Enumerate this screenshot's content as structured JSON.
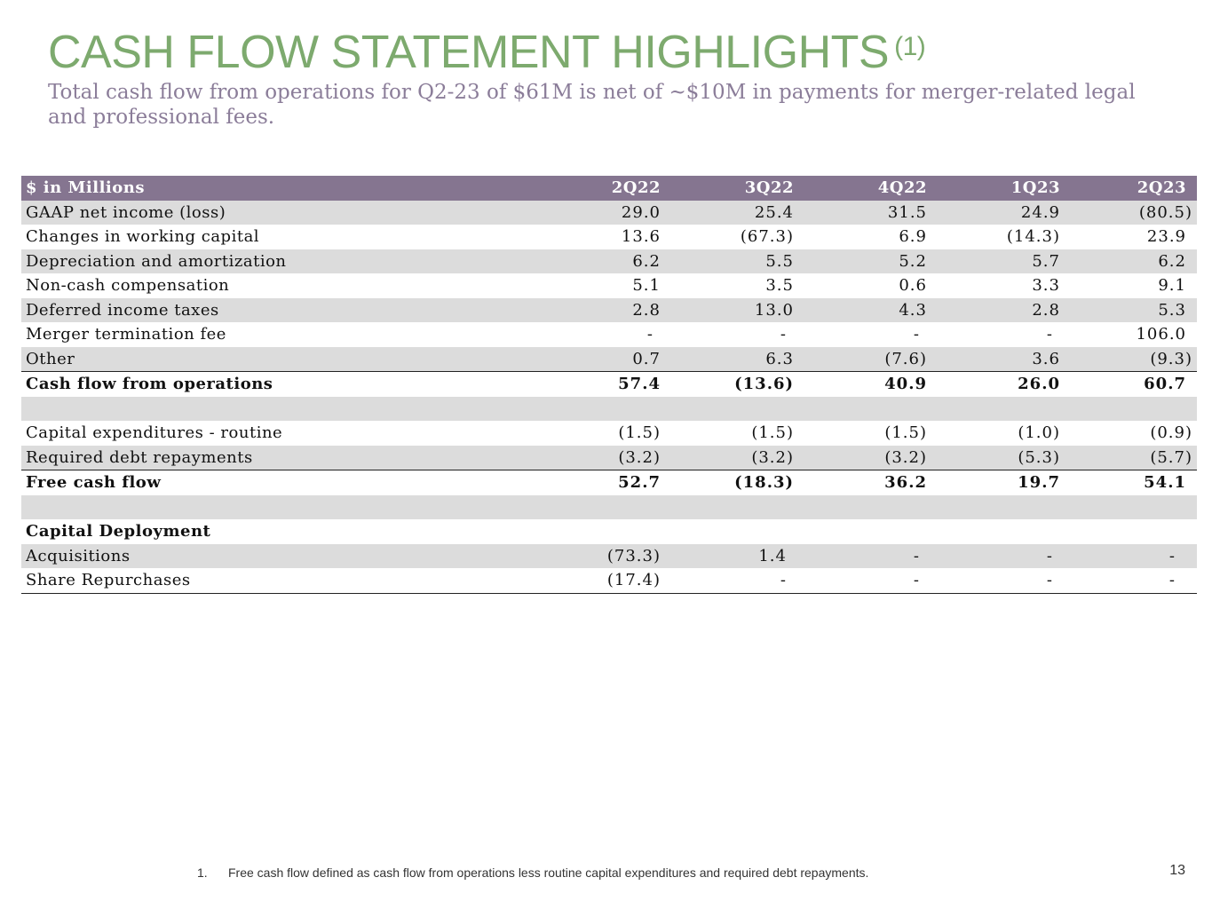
{
  "title": "CASH FLOW STATEMENT HIGHLIGHTS",
  "title_sup": "(1)",
  "subtitle": "Total cash flow from operations for Q2-23 of $61M is net of ~$10M in payments for merger-related legal and professional fees.",
  "table": {
    "header": [
      "$ in Millions",
      "2Q22",
      "3Q22",
      "4Q22",
      "1Q23",
      "2Q23"
    ],
    "rows": [
      {
        "label": "GAAP net income (loss)",
        "values": [
          "29.0",
          "25.4",
          "31.5",
          "24.9",
          "(80.5)"
        ]
      },
      {
        "label": "Changes in working capital",
        "values": [
          "13.6",
          "(67.3)",
          "6.9",
          "(14.3)",
          "23.9"
        ]
      },
      {
        "label": "Depreciation and amortization",
        "values": [
          "6.2",
          "5.5",
          "5.2",
          "5.7",
          "6.2"
        ]
      },
      {
        "label": "Non-cash compensation",
        "values": [
          "5.1",
          "3.5",
          "0.6",
          "3.3",
          "9.1"
        ]
      },
      {
        "label": "Deferred income taxes",
        "values": [
          "2.8",
          "13.0",
          "4.3",
          "2.8",
          "5.3"
        ]
      },
      {
        "label": "Merger termination fee",
        "values": [
          "-",
          "-",
          "-",
          "-",
          "106.0"
        ]
      },
      {
        "label": "Other",
        "values": [
          "0.7",
          "6.3",
          "(7.6)",
          "3.6",
          "(9.3)"
        ]
      },
      {
        "label": "Cash flow from operations",
        "values": [
          "57.4",
          "(13.6)",
          "40.9",
          "26.0",
          "60.7"
        ]
      },
      {
        "label": "",
        "values": [
          "",
          "",
          "",
          "",
          ""
        ]
      },
      {
        "label": "Capital expenditures - routine",
        "values": [
          "(1.5)",
          "(1.5)",
          "(1.5)",
          "(1.0)",
          "(0.9)"
        ]
      },
      {
        "label": "Required debt repayments",
        "values": [
          "(3.2)",
          "(3.2)",
          "(3.2)",
          "(5.3)",
          "(5.7)"
        ]
      },
      {
        "label": "Free cash flow",
        "values": [
          "52.7",
          "(18.3)",
          "36.2",
          "19.7",
          "54.1"
        ]
      },
      {
        "label": "",
        "values": [
          "",
          "",
          "",
          "",
          ""
        ]
      },
      {
        "label": "Capital Deployment",
        "values": [
          "",
          "",
          "",
          "",
          ""
        ]
      },
      {
        "label": "Acquisitions",
        "values": [
          "(73.3)",
          "1.4",
          "-",
          "-",
          "-"
        ]
      },
      {
        "label": "Share Repurchases",
        "values": [
          "(17.4)",
          "-",
          "-",
          "-",
          "-"
        ]
      }
    ]
  },
  "footnote": {
    "number": "1.",
    "text": "Free cash flow defined as cash flow from operations less routine capital expenditures and required debt repayments."
  },
  "page_number": "13"
}
